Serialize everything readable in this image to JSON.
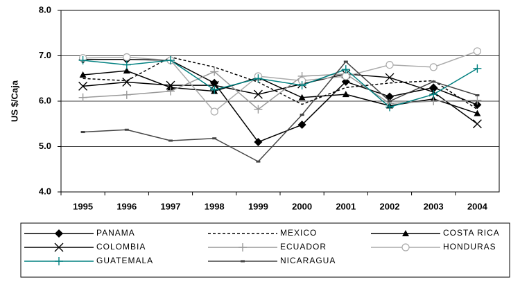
{
  "chart_data": {
    "type": "line",
    "y_label": "US $/Caja",
    "categories": [
      "1995",
      "1996",
      "1997",
      "1998",
      "1999",
      "2000",
      "2001",
      "2002",
      "2003",
      "2004"
    ],
    "ylim": [
      4,
      8
    ],
    "yticks": [
      {
        "value": 4,
        "label": "4.0"
      },
      {
        "value": 5,
        "label": "5.0"
      },
      {
        "value": 6,
        "label": "6.0"
      },
      {
        "value": 7,
        "label": "7.0"
      },
      {
        "value": 8,
        "label": "8.0"
      }
    ],
    "grid": true,
    "legend": "bottom",
    "series": [
      {
        "name": "PANAMA",
        "color": "#000000",
        "marker": "diamond",
        "values": [
          6.92,
          6.92,
          6.9,
          6.4,
          5.1,
          5.48,
          6.43,
          6.1,
          6.3,
          5.92
        ]
      },
      {
        "name": "MEXICO",
        "color": "#000000",
        "dash": true,
        "values": [
          6.5,
          6.45,
          6.97,
          6.75,
          6.42,
          5.93,
          6.3,
          6.4,
          6.45,
          5.82
        ]
      },
      {
        "name": "COSTA RICA",
        "color": "#000000",
        "marker": "triangle",
        "values": [
          6.58,
          6.67,
          6.3,
          6.22,
          6.52,
          6.08,
          6.15,
          5.9,
          6.05,
          5.73
        ]
      },
      {
        "name": "COLOMBIA",
        "color": "#000000",
        "marker": "x",
        "values": [
          6.33,
          6.42,
          6.35,
          6.35,
          6.15,
          6.38,
          6.6,
          6.52,
          6.2,
          5.5
        ]
      },
      {
        "name": "ECUADOR",
        "color": "#999999",
        "marker": "plus",
        "values": [
          6.08,
          6.14,
          6.22,
          6.65,
          5.82,
          6.55,
          6.6,
          5.95,
          6.0,
          6.02
        ]
      },
      {
        "name": "HONDURAS",
        "color": "#aaaaaa",
        "marker": "circle",
        "values": [
          6.95,
          6.97,
          6.9,
          5.77,
          6.55,
          6.45,
          6.55,
          6.8,
          6.75,
          7.1
        ]
      },
      {
        "name": "GUATEMALA",
        "color": "#008080",
        "marker": "plus",
        "values": [
          6.9,
          6.8,
          6.9,
          6.25,
          6.5,
          6.35,
          6.7,
          5.87,
          6.15,
          6.72
        ]
      },
      {
        "name": "NICARAGUA",
        "color": "#444444",
        "marker": "dash",
        "values": [
          5.32,
          5.37,
          5.13,
          5.18,
          4.67,
          5.7,
          6.87,
          6.0,
          6.43,
          6.13
        ]
      }
    ]
  }
}
